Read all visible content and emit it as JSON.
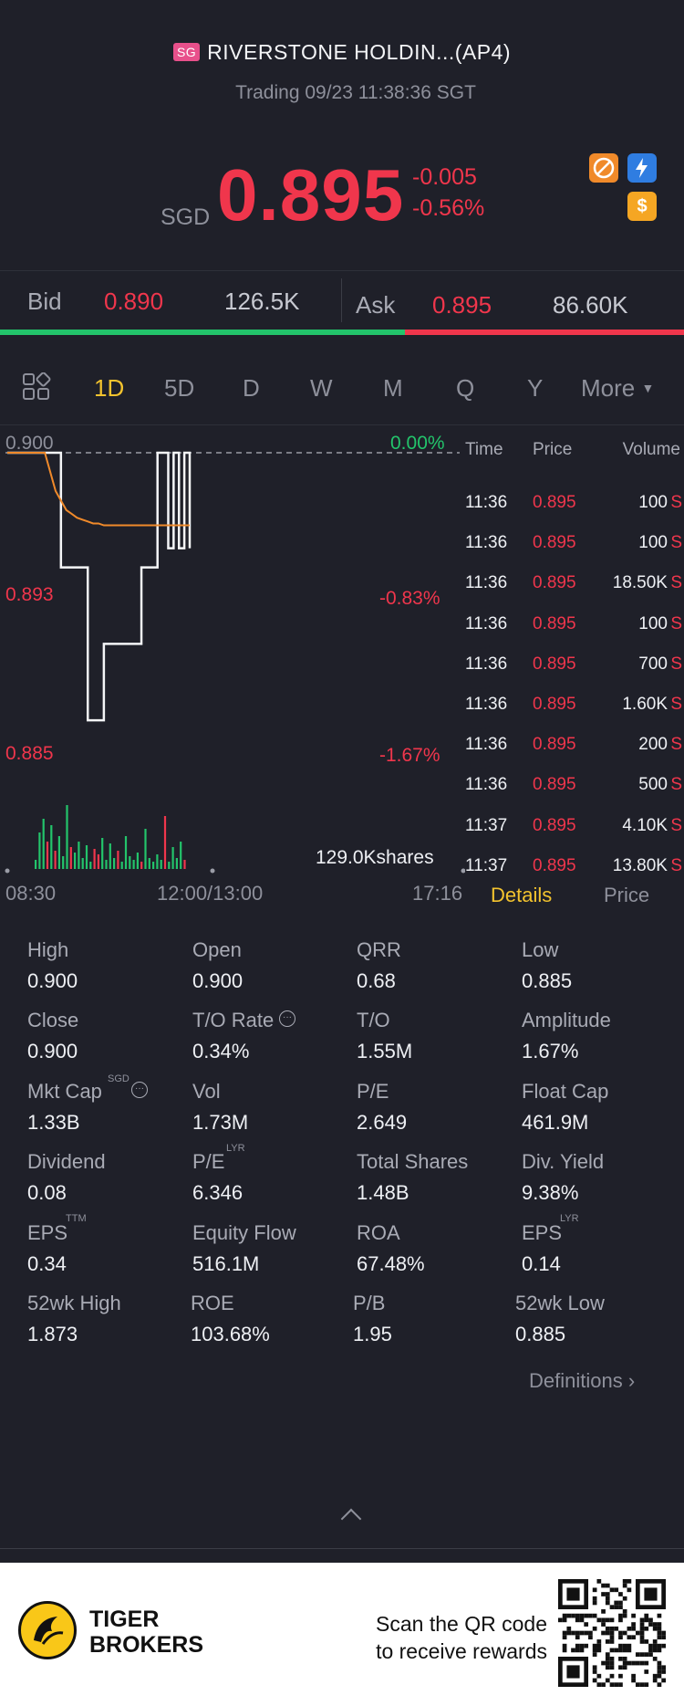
{
  "header": {
    "market_badge": "SG",
    "title": "RIVERSTONE HOLDIN...(AP4)",
    "status": "Trading 09/23 11:38:36 SGT",
    "currency": "SGD",
    "price": "0.895",
    "change": "-0.005",
    "change_pct": "-0.56%",
    "icons": [
      "no-short-icon",
      "flash-icon",
      "dollar-icon"
    ]
  },
  "bid_ask": {
    "bid_label": "Bid",
    "bid_price": "0.890",
    "bid_volume": "126.5K",
    "ask_label": "Ask",
    "ask_price": "0.895",
    "ask_volume": "86.60K",
    "bid_ratio": 0.592
  },
  "tabs": {
    "items": [
      "1D",
      "5D",
      "D",
      "W",
      "M",
      "Q",
      "Y",
      "More"
    ],
    "active": "1D"
  },
  "chart": {
    "y_top": "0.900",
    "y_mid": "0.893",
    "y_bot": "0.885",
    "pct_top": "0.00%",
    "pct_mid": "-0.83%",
    "pct_bot": "-1.67%",
    "volume_label": "129.0Kshares",
    "x_start": "08:30",
    "x_mid": "12:00/13:00",
    "x_end": "17:16"
  },
  "chart_data": {
    "type": "line",
    "ylim": [
      0.885,
      0.9
    ],
    "series": [
      {
        "values": [
          0.9,
          0.9,
          0.9,
          0.9,
          0.9,
          0.9,
          0.9,
          0.9,
          0.9,
          0.9,
          0.894,
          0.894,
          0.894,
          0.894,
          0.894,
          0.886,
          0.886,
          0.886,
          0.89,
          0.89,
          0.89,
          0.89,
          0.89,
          0.89,
          0.89,
          0.894,
          0.894,
          0.894,
          0.9,
          0.9,
          0.895,
          0.9,
          0.895,
          0.9,
          0.895
        ]
      },
      {
        "values": [
          0.9,
          0.9,
          0.9,
          0.9,
          0.9,
          0.9,
          0.9,
          0.9,
          0.899,
          0.898,
          0.8975,
          0.897,
          0.8968,
          0.8966,
          0.8965,
          0.8964,
          0.8963,
          0.8963,
          0.8962,
          0.8962,
          0.8962,
          0.8962,
          0.8962,
          0.8962,
          0.8962,
          0.8962,
          0.8962,
          0.8962,
          0.8962,
          0.8962,
          0.8962,
          0.8962,
          0.8962,
          0.8962,
          0.8962
        ]
      }
    ],
    "volume_colors": [
      "#23c46b",
      "#f0364c"
    ]
  },
  "trades": {
    "headers": [
      "Time",
      "Price",
      "Volume"
    ],
    "rows": [
      {
        "time": "11:36",
        "price": "0.895",
        "volume": "100",
        "flag": "S"
      },
      {
        "time": "11:36",
        "price": "0.895",
        "volume": "100",
        "flag": "S"
      },
      {
        "time": "11:36",
        "price": "0.895",
        "volume": "18.50K",
        "flag": "S"
      },
      {
        "time": "11:36",
        "price": "0.895",
        "volume": "100",
        "flag": "S"
      },
      {
        "time": "11:36",
        "price": "0.895",
        "volume": "700",
        "flag": "S"
      },
      {
        "time": "11:36",
        "price": "0.895",
        "volume": "1.60K",
        "flag": "S"
      },
      {
        "time": "11:36",
        "price": "0.895",
        "volume": "200",
        "flag": "S"
      },
      {
        "time": "11:36",
        "price": "0.895",
        "volume": "500",
        "flag": "S"
      },
      {
        "time": "11:37",
        "price": "0.895",
        "volume": "4.10K",
        "flag": "S"
      },
      {
        "time": "11:37",
        "price": "0.895",
        "volume": "13.80K",
        "flag": "S"
      }
    ],
    "tab_details": "Details",
    "tab_price": "Price"
  },
  "stats": {
    "high_label": "High",
    "high": "0.900",
    "open_label": "Open",
    "open": "0.900",
    "qrr_label": "QRR",
    "qrr": "0.68",
    "low_label": "Low",
    "low": "0.885",
    "close_label": "Close",
    "close": "0.900",
    "to_rate_label": "T/O Rate",
    "to_rate": "0.34%",
    "to_label": "T/O",
    "to": "1.55M",
    "amplitude_label": "Amplitude",
    "amplitude": "1.67%",
    "mkt_cap_label": "Mkt Cap",
    "mkt_cap_sup": "SGD",
    "mkt_cap": "1.33B",
    "vol_label": "Vol",
    "vol": "1.73M",
    "pe_label": "P/E",
    "pe": "2.649",
    "float_cap_label": "Float Cap",
    "float_cap": "461.9M",
    "dividend_label": "Dividend",
    "dividend": "0.08",
    "pe_lyr_label": "P/E",
    "pe_lyr_sup": "LYR",
    "pe_lyr": "6.346",
    "total_shares_label": "Total Shares",
    "total_shares": "1.48B",
    "div_yield_label": "Div. Yield",
    "div_yield": "9.38%",
    "eps_ttm_label": "EPS",
    "eps_ttm_sup": "TTM",
    "eps_ttm": "0.34",
    "equity_flow_label": "Equity Flow",
    "equity_flow": "516.1M",
    "roa_label": "ROA",
    "roa": "67.48%",
    "eps_lyr_label": "EPS",
    "eps_lyr_sup": "LYR",
    "eps_lyr": "0.14",
    "wk52_high_label": "52wk High",
    "wk52_high": "1.873",
    "roe_label": "ROE",
    "roe": "103.68%",
    "pb_label": "P/B",
    "pb": "1.95",
    "wk52_low_label": "52wk Low",
    "wk52_low": "0.885",
    "definitions": "Definitions"
  },
  "footer": {
    "brand_line1": "TIGER",
    "brand_line2": "BROKERS",
    "scan_line1": "Scan the QR code",
    "scan_line2": "to receive rewards"
  }
}
